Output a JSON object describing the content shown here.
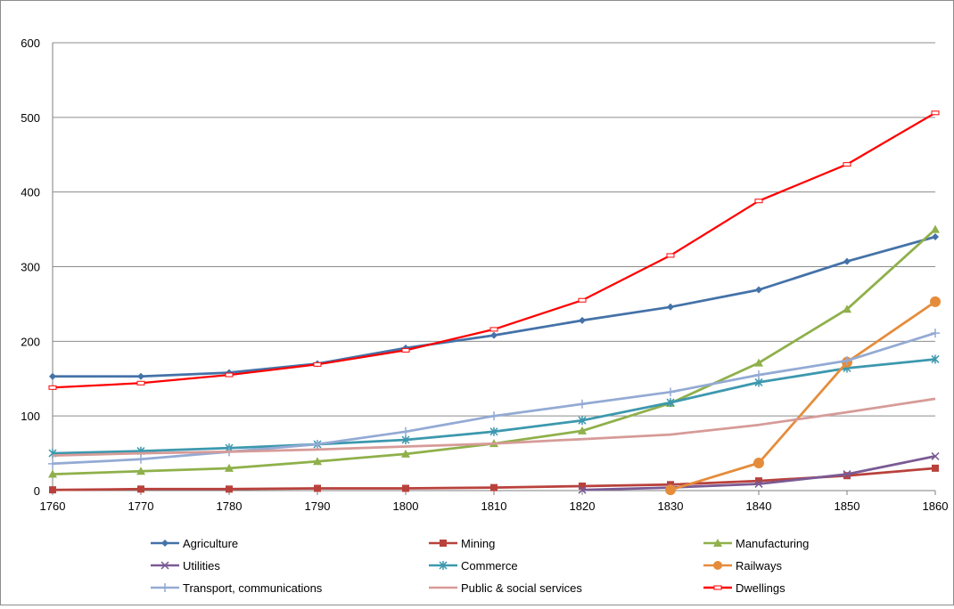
{
  "chart_data": {
    "type": "line",
    "x": [
      1760,
      1770,
      1780,
      1790,
      1800,
      1810,
      1820,
      1830,
      1840,
      1850,
      1860
    ],
    "ylim": [
      0,
      600
    ],
    "yticks": [
      0,
      100,
      200,
      300,
      400,
      500,
      600
    ],
    "grid": true,
    "legend_position": "bottom",
    "series": [
      {
        "name": "Agriculture",
        "color": "#4472a8",
        "marker": "diamond",
        "values": [
          153,
          153,
          158,
          170,
          191,
          208,
          228,
          246,
          269,
          307,
          340
        ]
      },
      {
        "name": "Mining",
        "color": "#b9413c",
        "marker": "square",
        "values": [
          1,
          2,
          2,
          3,
          3,
          4,
          6,
          8,
          13,
          20,
          30
        ]
      },
      {
        "name": "Manufacturing",
        "color": "#8fb04a",
        "marker": "triangle",
        "values": [
          22,
          26,
          30,
          39,
          49,
          63,
          80,
          117,
          171,
          243,
          350
        ]
      },
      {
        "name": "Utilities",
        "color": "#7a5a94",
        "marker": "x",
        "values": [
          null,
          null,
          null,
          null,
          null,
          null,
          1,
          4,
          9,
          22,
          46
        ]
      },
      {
        "name": "Commerce",
        "color": "#3c98ae",
        "marker": "asterisk",
        "values": [
          50,
          53,
          57,
          62,
          68,
          79,
          94,
          118,
          145,
          164,
          176
        ]
      },
      {
        "name": "Railways",
        "color": "#e58c3b",
        "marker": "circle",
        "values": [
          null,
          null,
          null,
          null,
          null,
          null,
          null,
          1,
          37,
          172,
          253
        ]
      },
      {
        "name": "Transport, communications",
        "color": "#93aad4",
        "marker": "plus",
        "values": [
          36,
          42,
          52,
          62,
          79,
          100,
          116,
          132,
          155,
          174,
          211
        ]
      },
      {
        "name": "Public & social services",
        "color": "#d69b98",
        "marker": "none",
        "values": [
          47,
          50,
          52,
          55,
          59,
          63,
          69,
          75,
          88,
          105,
          123
        ]
      },
      {
        "name": "Dwellings",
        "color": "#ff0000",
        "marker": "dash",
        "values": [
          138,
          144,
          155,
          169,
          188,
          216,
          255,
          315,
          388,
          437,
          506
        ]
      }
    ]
  }
}
